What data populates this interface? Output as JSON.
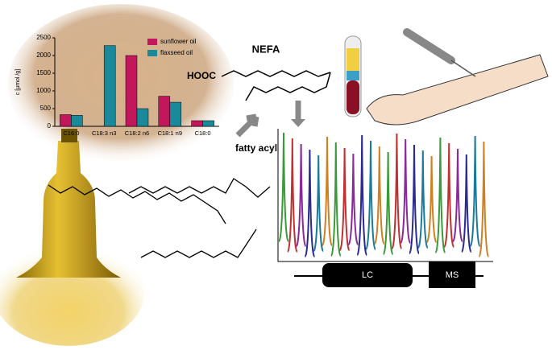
{
  "chart_data": {
    "type": "bar",
    "ylabel": "c [µmol /g]",
    "categories": [
      "C16:0",
      "C18:3 n3",
      "C18:2 n6",
      "C18:1 n9",
      "C18:0"
    ],
    "series": [
      {
        "name": "sunflower oil",
        "color": "#c2185b",
        "values": [
          330,
          0,
          2000,
          850,
          160
        ]
      },
      {
        "name": "flaxseed oil",
        "color": "#1a8a9a",
        "values": [
          310,
          2280,
          500,
          680,
          160
        ]
      }
    ],
    "ylim": [
      0,
      2500
    ],
    "yticks": [
      0,
      500,
      1000,
      1500,
      2000,
      2500
    ]
  },
  "labels": {
    "nefa": "NEFA",
    "hooc": "HOOC",
    "fatty_acyl": "fatty acyl",
    "lc": "LC",
    "ms": "MS"
  }
}
